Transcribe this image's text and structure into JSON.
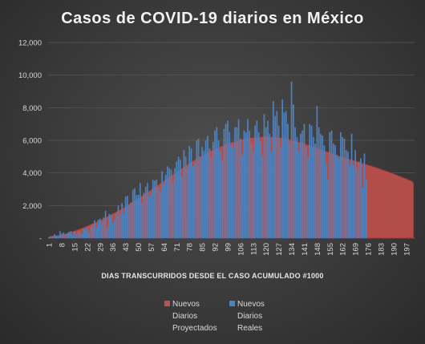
{
  "chart_data": {
    "type": "bar",
    "title": "Casos de COVID-19  diarios  en México",
    "xlabel": "DIAS TRANSCURRIDOS DESDE EL CASO ACUMULADO #1000",
    "ylabel": "",
    "ylim": [
      0,
      12000
    ],
    "y_ticks": [
      "-",
      "2,000",
      "4,000",
      "6,000",
      "8,000",
      "10,000",
      "12,000"
    ],
    "x_ticks": [
      1,
      8,
      15,
      22,
      29,
      36,
      43,
      50,
      57,
      64,
      71,
      78,
      85,
      92,
      99,
      106,
      113,
      120,
      127,
      134,
      141,
      148,
      155,
      162,
      169,
      176,
      183,
      190,
      197
    ],
    "x_range": [
      1,
      201
    ],
    "grid": "horizontal",
    "legend_position": "bottom",
    "colors": {
      "projected": "#c0504d",
      "real": "#4f81bd"
    },
    "series": [
      {
        "name": "Nuevos Diarios Proyectados",
        "type": "area",
        "points": [
          [
            1,
            80
          ],
          [
            10,
            250
          ],
          [
            20,
            650
          ],
          [
            30,
            1150
          ],
          [
            40,
            1750
          ],
          [
            50,
            2450
          ],
          [
            60,
            3200
          ],
          [
            70,
            4000
          ],
          [
            80,
            4750
          ],
          [
            90,
            5400
          ],
          [
            100,
            5850
          ],
          [
            110,
            6150
          ],
          [
            120,
            6250
          ],
          [
            130,
            6150
          ],
          [
            140,
            5850
          ],
          [
            150,
            5450
          ],
          [
            160,
            5050
          ],
          [
            170,
            4700
          ],
          [
            180,
            4350
          ],
          [
            190,
            3950
          ],
          [
            200,
            3500
          ],
          [
            201,
            3400
          ]
        ]
      },
      {
        "name": "Nuevos Diarios Reales",
        "type": "bar",
        "x_start": 1,
        "values": [
          70,
          120,
          130,
          240,
          150,
          100,
          420,
          280,
          350,
          260,
          310,
          390,
          430,
          190,
          420,
          240,
          400,
          380,
          250,
          600,
          560,
          650,
          330,
          690,
          870,
          1090,
          640,
          1130,
          1200,
          950,
          1270,
          1680,
          610,
          1490,
          1440,
          920,
          1140,
          1510,
          2000,
          1490,
          2160,
          1510,
          2550,
          2600,
          2060,
          2180,
          2980,
          3060,
          2650,
          2660,
          3380,
          2150,
          2780,
          3150,
          3380,
          2530,
          2720,
          3580,
          3530,
          3600,
          3100,
          2900,
          4100,
          3300,
          3900,
          4400,
          4300,
          4200,
          3380,
          4300,
          4700,
          5000,
          4800,
          3800,
          5400,
          5000,
          4300,
          5660,
          5500,
          4400,
          4600,
          6000,
          6100,
          5000,
          5600,
          5350,
          6000,
          6280,
          5500,
          4900,
          5900,
          6600,
          6800,
          6000,
          5300,
          4800,
          6700,
          7000,
          7200,
          6500,
          5700,
          5500,
          6800,
          6800,
          7300,
          6100,
          5100,
          6600,
          6500,
          7300,
          6600,
          5800,
          5400,
          6900,
          7200,
          6500,
          5900,
          5100,
          7600,
          6800,
          7200,
          6400,
          5300,
          8400,
          7500,
          7800,
          6900,
          5600,
          8500,
          7700,
          7800,
          7000,
          5900,
          9600,
          8200,
          6800,
          6200,
          5300,
          6400,
          6600,
          7000,
          5600,
          4900,
          7000,
          6900,
          6200,
          5800,
          8100,
          6800,
          6400,
          6300,
          5700,
          4600,
          3600,
          6500,
          6600,
          5800,
          5700,
          5100,
          4900,
          6500,
          6200,
          6100,
          5400,
          5300,
          4500,
          6400,
          4500,
          5400,
          4300,
          4700,
          4900,
          3100,
          5200,
          3600
        ]
      }
    ]
  }
}
